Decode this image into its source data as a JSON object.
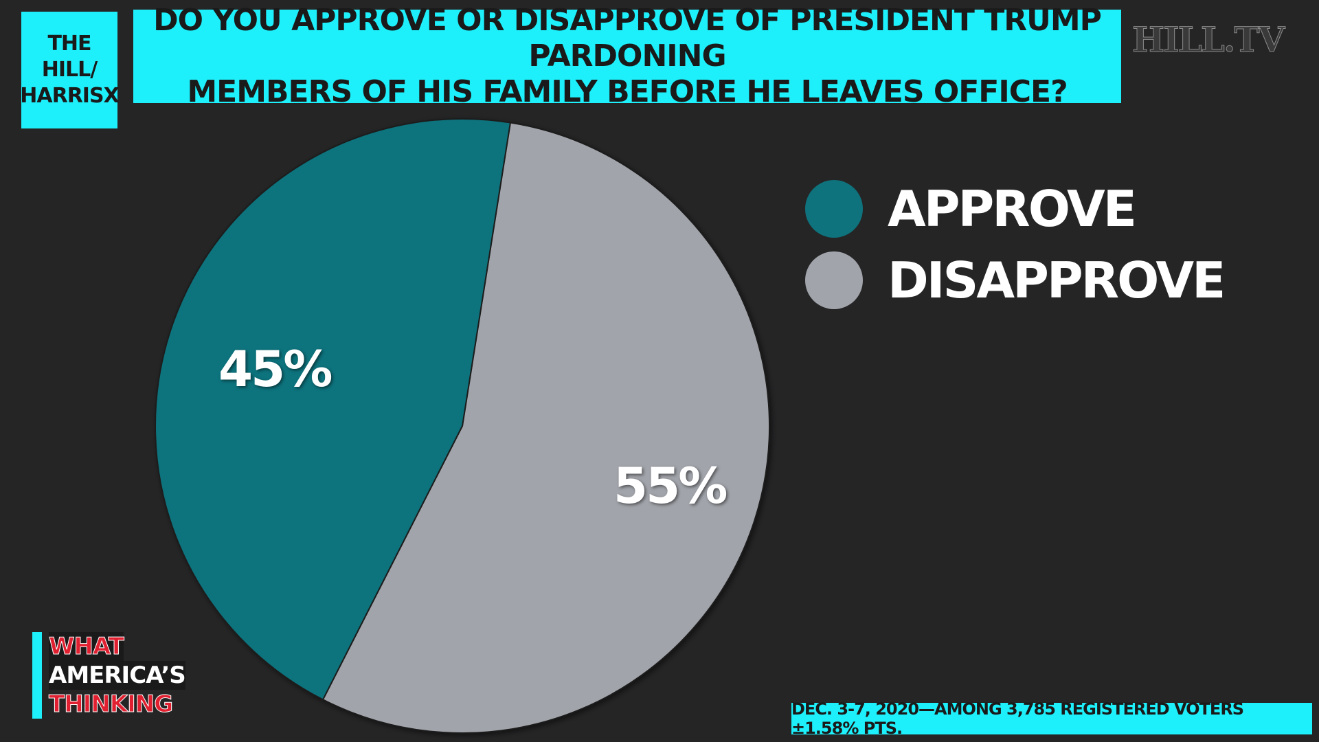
{
  "brand": {
    "line1": "THE HILL/",
    "line2": "HARRISX"
  },
  "question": {
    "line1": "DO YOU APPROVE OR DISAPPROVE OF PRESIDENT TRUMP PARDONING",
    "line2": "MEMBERS OF HIS FAMILY BEFORE HE LEAVES OFFICE?"
  },
  "channel_logo": "HILL.TV",
  "segment_logo": {
    "line1": "WHAT",
    "line2": "AMERICA’S",
    "line3": "THINKING"
  },
  "footnote": "DEC. 3-7, 2020—AMONG 3,785 REGISTERED VOTERS ±1.58% PTS.",
  "colors": {
    "accent": "#1ef0fb",
    "approve": "#0e737d",
    "disapprove": "#a1a4aa",
    "background": "#252526"
  },
  "chart_data": {
    "type": "pie",
    "title": "DO YOU APPROVE OR DISAPPROVE OF PRESIDENT TRUMP PARDONING MEMBERS OF HIS FAMILY BEFORE HE LEAVES OFFICE?",
    "categories": [
      "APPROVE",
      "DISAPPROVE"
    ],
    "values": [
      45,
      55
    ],
    "value_labels": [
      "45%",
      "55%"
    ],
    "colors": [
      "#0e737d",
      "#a1a4aa"
    ],
    "legend": "right",
    "start_angle_deg": 9
  }
}
